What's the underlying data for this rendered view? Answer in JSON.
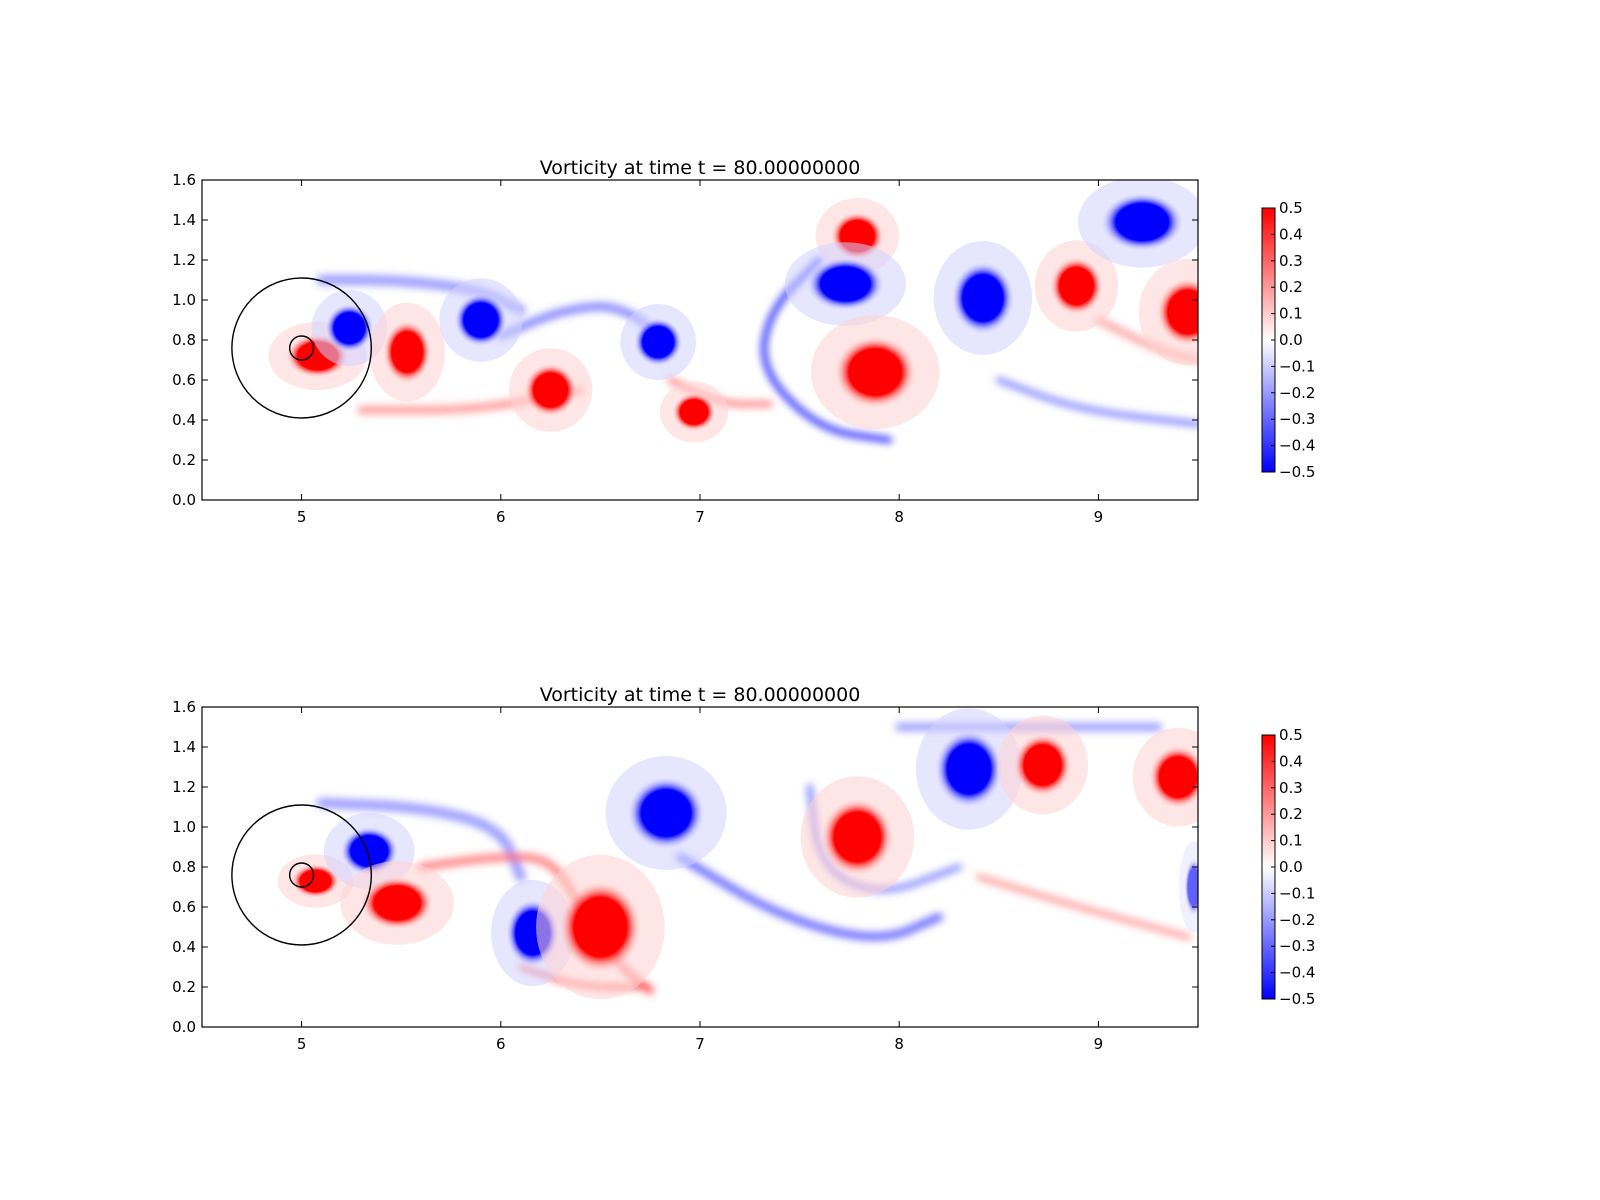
{
  "chart_data": [
    {
      "type": "heatmap",
      "title": "Vorticity at time t =    80.00000000",
      "xlim": [
        4.5,
        9.5
      ],
      "ylim": [
        0.0,
        1.6
      ],
      "xticks": [
        "5",
        "6",
        "7",
        "8",
        "9"
      ],
      "yticks": [
        "0.0",
        "0.2",
        "0.4",
        "0.6",
        "0.8",
        "1.0",
        "1.2",
        "1.4",
        "1.6"
      ],
      "colorbar": {
        "range": [
          -0.5,
          0.5
        ],
        "ticks": [
          "0.5",
          "0.4",
          "0.3",
          "0.2",
          "0.1",
          "0.0",
          "−0.1",
          "−0.2",
          "−0.3",
          "−0.4",
          "−0.5"
        ],
        "colors": {
          "negative": "#0000ff",
          "zero": "#ffffff",
          "positive": "#ff0000"
        }
      },
      "circles": [
        {
          "cx": 5.0,
          "cy": 0.76,
          "r": 0.35
        },
        {
          "cx": 5.0,
          "cy": 0.76,
          "r": 0.06
        }
      ],
      "vortices": [
        {
          "x": 5.08,
          "y": 0.72,
          "rx": 0.13,
          "ry": 0.09,
          "w": 0.5
        },
        {
          "x": 5.24,
          "y": 0.86,
          "rx": 0.1,
          "ry": 0.1,
          "w": -0.5
        },
        {
          "x": 5.53,
          "y": 0.74,
          "rx": 0.1,
          "ry": 0.13,
          "w": 0.5
        },
        {
          "x": 5.9,
          "y": 0.9,
          "rx": 0.11,
          "ry": 0.11,
          "w": -0.5
        },
        {
          "x": 6.25,
          "y": 0.55,
          "rx": 0.11,
          "ry": 0.11,
          "w": 0.5
        },
        {
          "x": 6.79,
          "y": 0.79,
          "rx": 0.1,
          "ry": 0.1,
          "w": -0.5
        },
        {
          "x": 6.97,
          "y": 0.44,
          "rx": 0.09,
          "ry": 0.08,
          "w": 0.5
        },
        {
          "x": 7.79,
          "y": 1.32,
          "rx": 0.11,
          "ry": 0.1,
          "w": 0.5
        },
        {
          "x": 7.73,
          "y": 1.08,
          "rx": 0.16,
          "ry": 0.11,
          "w": -0.5
        },
        {
          "x": 7.88,
          "y": 0.64,
          "rx": 0.17,
          "ry": 0.15,
          "w": 0.5
        },
        {
          "x": 8.42,
          "y": 1.01,
          "rx": 0.13,
          "ry": 0.15,
          "w": -0.5
        },
        {
          "x": 8.89,
          "y": 1.07,
          "rx": 0.11,
          "ry": 0.12,
          "w": 0.5
        },
        {
          "x": 9.22,
          "y": 1.39,
          "rx": 0.17,
          "ry": 0.12,
          "w": -0.5
        },
        {
          "x": 9.45,
          "y": 0.94,
          "rx": 0.13,
          "ry": 0.14,
          "w": 0.5
        }
      ],
      "streaks": [
        {
          "d": [
            [
              5.1,
              1.1
            ],
            [
              5.5,
              1.1
            ],
            [
              5.9,
              1.05
            ],
            [
              6.1,
              0.95
            ]
          ],
          "w": -0.12,
          "width": 0.05
        },
        {
          "d": [
            [
              5.3,
              0.45
            ],
            [
              5.9,
              0.45
            ],
            [
              6.4,
              0.55
            ]
          ],
          "w": 0.12,
          "width": 0.04
        },
        {
          "d": [
            [
              6.0,
              0.82
            ],
            [
              6.3,
              0.95
            ],
            [
              6.6,
              0.98
            ],
            [
              6.85,
              0.78
            ]
          ],
          "w": -0.15,
          "width": 0.04
        },
        {
          "d": [
            [
              6.85,
              0.6
            ],
            [
              7.1,
              0.48
            ],
            [
              7.35,
              0.48
            ]
          ],
          "w": 0.15,
          "width": 0.03
        },
        {
          "d": [
            [
              7.6,
              1.2
            ],
            [
              7.35,
              0.95
            ],
            [
              7.3,
              0.65
            ],
            [
              7.6,
              0.35
            ],
            [
              7.95,
              0.3
            ]
          ],
          "w": -0.25,
          "width": 0.03
        },
        {
          "d": [
            [
              8.5,
              0.6
            ],
            [
              8.9,
              0.45
            ],
            [
              9.5,
              0.38
            ]
          ],
          "w": -0.15,
          "width": 0.03
        },
        {
          "d": [
            [
              9.0,
              0.9
            ],
            [
              9.3,
              0.75
            ],
            [
              9.5,
              0.7
            ]
          ],
          "w": 0.1,
          "width": 0.04
        }
      ]
    },
    {
      "type": "heatmap",
      "title": "Vorticity at time t =    80.00000000",
      "xlim": [
        4.5,
        9.5
      ],
      "ylim": [
        0.0,
        1.6
      ],
      "xticks": [
        "5",
        "6",
        "7",
        "8",
        "9"
      ],
      "yticks": [
        "0.0",
        "0.2",
        "0.4",
        "0.6",
        "0.8",
        "1.0",
        "1.2",
        "1.4",
        "1.6"
      ],
      "colorbar": {
        "range": [
          -0.5,
          0.5
        ],
        "ticks": [
          "0.5",
          "0.4",
          "0.3",
          "0.2",
          "0.1",
          "0.0",
          "−0.1",
          "−0.2",
          "−0.3",
          "−0.4",
          "−0.5"
        ],
        "colors": {
          "negative": "#0000ff",
          "zero": "#ffffff",
          "positive": "#ff0000"
        }
      },
      "circles": [
        {
          "cx": 5.0,
          "cy": 0.76,
          "r": 0.35
        },
        {
          "cx": 5.0,
          "cy": 0.76,
          "r": 0.06
        }
      ],
      "vortices": [
        {
          "x": 5.07,
          "y": 0.73,
          "rx": 0.1,
          "ry": 0.07,
          "w": 0.5
        },
        {
          "x": 5.34,
          "y": 0.88,
          "rx": 0.12,
          "ry": 0.1,
          "w": -0.5
        },
        {
          "x": 5.48,
          "y": 0.62,
          "rx": 0.15,
          "ry": 0.11,
          "w": 0.5
        },
        {
          "x": 6.16,
          "y": 0.47,
          "rx": 0.11,
          "ry": 0.14,
          "w": -0.5
        },
        {
          "x": 6.5,
          "y": 0.5,
          "rx": 0.17,
          "ry": 0.19,
          "w": 0.5
        },
        {
          "x": 6.83,
          "y": 1.07,
          "rx": 0.16,
          "ry": 0.15,
          "w": -0.5
        },
        {
          "x": 7.79,
          "y": 0.95,
          "rx": 0.15,
          "ry": 0.16,
          "w": 0.5
        },
        {
          "x": 8.35,
          "y": 1.29,
          "rx": 0.14,
          "ry": 0.16,
          "w": -0.5
        },
        {
          "x": 8.72,
          "y": 1.31,
          "rx": 0.12,
          "ry": 0.13,
          "w": 0.5
        },
        {
          "x": 9.4,
          "y": 1.25,
          "rx": 0.12,
          "ry": 0.13,
          "w": 0.5
        },
        {
          "x": 9.48,
          "y": 0.7,
          "rx": 0.04,
          "ry": 0.12,
          "w": -0.3
        }
      ],
      "streaks": [
        {
          "d": [
            [
              5.1,
              1.12
            ],
            [
              5.6,
              1.1
            ],
            [
              6.0,
              1.0
            ],
            [
              6.1,
              0.75
            ]
          ],
          "w": -0.12,
          "width": 0.05
        },
        {
          "d": [
            [
              5.6,
              0.8
            ],
            [
              5.95,
              0.85
            ],
            [
              6.25,
              0.85
            ],
            [
              6.4,
              0.6
            ],
            [
              6.6,
              0.3
            ],
            [
              6.75,
              0.18
            ]
          ],
          "w": 0.15,
          "width": 0.04
        },
        {
          "d": [
            [
              6.1,
              0.3
            ],
            [
              6.4,
              0.2
            ],
            [
              6.75,
              0.2
            ]
          ],
          "w": 0.25,
          "width": 0.02
        },
        {
          "d": [
            [
              6.9,
              0.85
            ],
            [
              7.4,
              0.55
            ],
            [
              7.9,
              0.42
            ],
            [
              8.2,
              0.55
            ]
          ],
          "w": -0.18,
          "width": 0.04
        },
        {
          "d": [
            [
              7.55,
              1.2
            ],
            [
              7.6,
              0.8
            ],
            [
              7.9,
              0.65
            ],
            [
              8.3,
              0.8
            ]
          ],
          "w": -0.15,
          "width": 0.03
        },
        {
          "d": [
            [
              8.0,
              1.5
            ],
            [
              8.6,
              1.5
            ],
            [
              9.3,
              1.5
            ]
          ],
          "w": -0.12,
          "width": 0.04
        },
        {
          "d": [
            [
              8.4,
              0.75
            ],
            [
              8.9,
              0.6
            ],
            [
              9.45,
              0.45
            ]
          ],
          "w": 0.12,
          "width": 0.03
        }
      ]
    }
  ]
}
